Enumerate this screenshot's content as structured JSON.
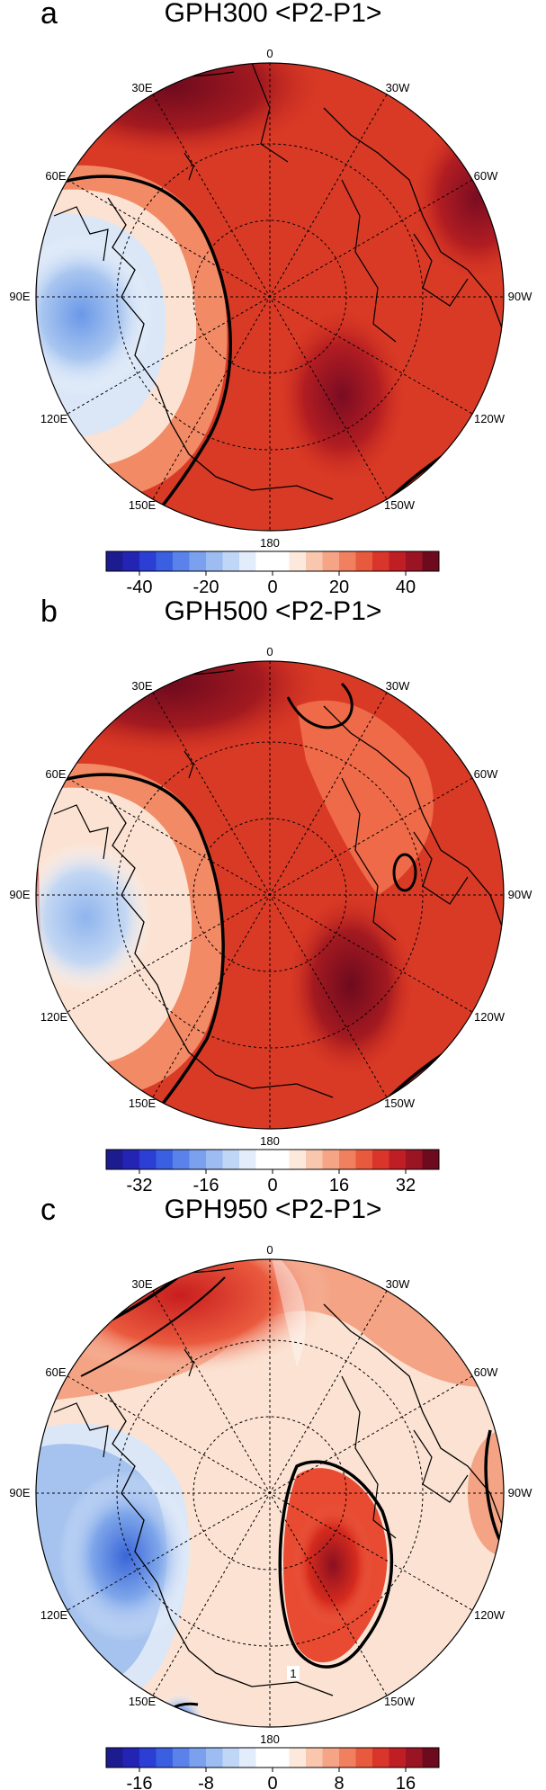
{
  "panels": [
    {
      "letter": "a",
      "title": "GPH300 <P2-P1>",
      "colorbar_ticks": [
        "-40",
        "-20",
        "0",
        "20",
        "40"
      ],
      "colorbar_range": [
        -50,
        50
      ]
    },
    {
      "letter": "b",
      "title": "GPH500 <P2-P1>",
      "colorbar_ticks": [
        "-32",
        "-16",
        "0",
        "16",
        "32"
      ],
      "colorbar_range": [
        -40,
        40
      ]
    },
    {
      "letter": "c",
      "title": "GPH950 <P2-P1>",
      "colorbar_ticks": [
        "-16",
        "-8",
        "0",
        "8",
        "16"
      ],
      "colorbar_range": [
        -20,
        20
      ],
      "contour_label": "1"
    }
  ],
  "longitude_labels": {
    "top": "0",
    "bottom": "180",
    "upper_left": "30E",
    "upper_right": "30W",
    "left_high": "60E",
    "right_high": "60W",
    "left": "90E",
    "right": "90W",
    "left_low": "120E",
    "right_low": "120W",
    "lower_left": "150E",
    "lower_right": "150W"
  },
  "colors": {
    "deep_red": "#6e0a1e",
    "red": "#d32f1f",
    "orange_red": "#ee5a3a",
    "light": "#fbe2d2",
    "white": "#ffffff",
    "light_blue": "#b9d3f1",
    "blue": "#5c8fe8",
    "deep_blue": "#1c1c90"
  }
}
